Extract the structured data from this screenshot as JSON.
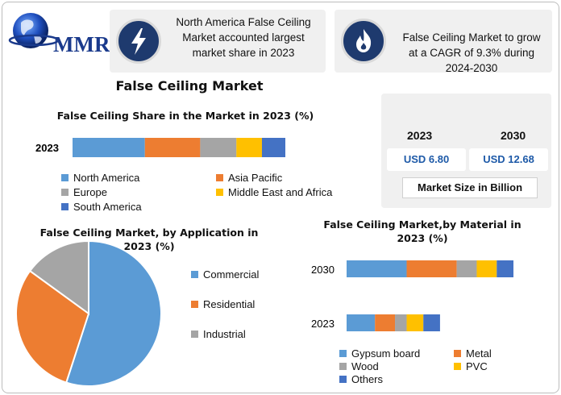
{
  "logo": {
    "text": "MMR"
  },
  "cards": [
    {
      "text_lines": [
        "North America False Ceiling",
        "Market accounted largest",
        "market share in 2023"
      ],
      "icon": "lightning-icon"
    },
    {
      "text_lines": [
        "False Ceiling Market to grow",
        "at a CAGR of 9.3% during",
        "2024-2030"
      ],
      "icon": "flame-icon"
    }
  ],
  "main_title": "False Ceiling Market",
  "market_size": {
    "years": [
      "2023",
      "2030"
    ],
    "values": [
      "USD 6.80",
      "USD 12.68"
    ],
    "label": "Market Size in Billion"
  },
  "colors": {
    "blue": "#5b9bd5",
    "orange": "#ed7d31",
    "gray": "#a5a5a5",
    "yellow": "#ffc000",
    "darkblue": "#4472c4"
  },
  "chart_data": [
    {
      "type": "bar",
      "orientation": "horizontal-stacked",
      "title": "False Ceiling Share in the Market in 2023 (%)",
      "categories": [
        "2023"
      ],
      "series": [
        {
          "name": "North America",
          "values": [
            34
          ]
        },
        {
          "name": "Asia Pacific",
          "values": [
            26
          ]
        },
        {
          "name": "Europe",
          "values": [
            17
          ]
        },
        {
          "name": "Middle East and Africa",
          "values": [
            12
          ]
        },
        {
          "name": "South America",
          "values": [
            11
          ]
        }
      ]
    },
    {
      "type": "pie",
      "title": "False Ceiling Market, by Application in 2023 (%)",
      "categories": [
        "Commercial",
        "Residential",
        "Industrial"
      ],
      "values": [
        55,
        30,
        15
      ]
    },
    {
      "type": "bar",
      "orientation": "horizontal-stacked",
      "title": "False Ceiling Market,by Material in 2023 (%)",
      "categories": [
        "2030",
        "2023"
      ],
      "series": [
        {
          "name": "Gypsum board",
          "values": [
            36,
            17
          ]
        },
        {
          "name": "Metal",
          "values": [
            30,
            12
          ]
        },
        {
          "name": "Wood",
          "values": [
            12,
            7
          ]
        },
        {
          "name": "PVC",
          "values": [
            12,
            10
          ]
        },
        {
          "name": "Others",
          "values": [
            10,
            10
          ]
        }
      ]
    }
  ]
}
